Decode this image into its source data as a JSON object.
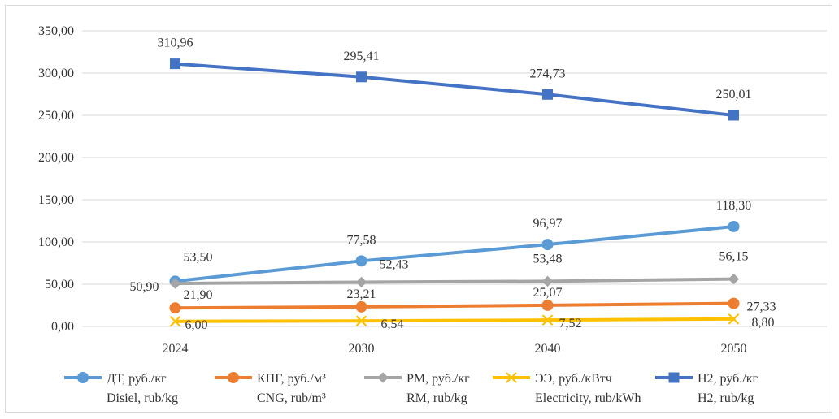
{
  "chart_data": {
    "type": "line",
    "categories": [
      "2024",
      "2030",
      "2040",
      "2050"
    ],
    "ylim": [
      0,
      350
    ],
    "yticks": [
      0,
      50,
      100,
      150,
      200,
      250,
      300,
      350
    ],
    "ytick_labels": [
      "0,00",
      "50,00",
      "100,00",
      "150,00",
      "200,00",
      "250,00",
      "300,00",
      "350,00"
    ],
    "grid": true,
    "legend_position": "bottom",
    "series": [
      {
        "name": "ДТ, руб./кг",
        "name_en": "Disiel, rub/kg",
        "color": "#5b9bd5",
        "marker": "circle",
        "values": [
          53.5,
          77.58,
          96.97,
          118.3
        ],
        "labels": [
          "53,50",
          "77,58",
          "96,97",
          "118,30"
        ]
      },
      {
        "name": "КПГ, руб./м³",
        "name_en": "CNG, rub/m³",
        "color": "#ed7d31",
        "marker": "circle",
        "values": [
          21.9,
          23.21,
          25.07,
          27.33
        ],
        "labels": [
          "21,90",
          "23,21",
          "25,07",
          "27,33"
        ]
      },
      {
        "name": "РМ, руб./кг",
        "name_en": "RM, rub/kg",
        "color": "#a5a5a5",
        "marker": "diamond",
        "values": [
          50.9,
          52.43,
          53.48,
          56.15
        ],
        "labels": [
          "50,90",
          "52,43",
          "53,48",
          "56,15"
        ]
      },
      {
        "name": "ЭЭ, руб./кВтч",
        "name_en": "Electricity, rub/kWh",
        "color": "#ffc000",
        "marker": "x",
        "values": [
          6.0,
          6.54,
          7.52,
          8.8
        ],
        "labels": [
          "6,00",
          "6,54",
          "7,52",
          "8,80"
        ]
      },
      {
        "name": "Н2, руб./кг",
        "name_en": "H2, rub/kg",
        "color": "#4472c4",
        "marker": "square",
        "values": [
          310.96,
          295.41,
          274.73,
          250.01
        ],
        "labels": [
          "310,96",
          "295,41",
          "274,73",
          "250,01"
        ]
      }
    ]
  }
}
